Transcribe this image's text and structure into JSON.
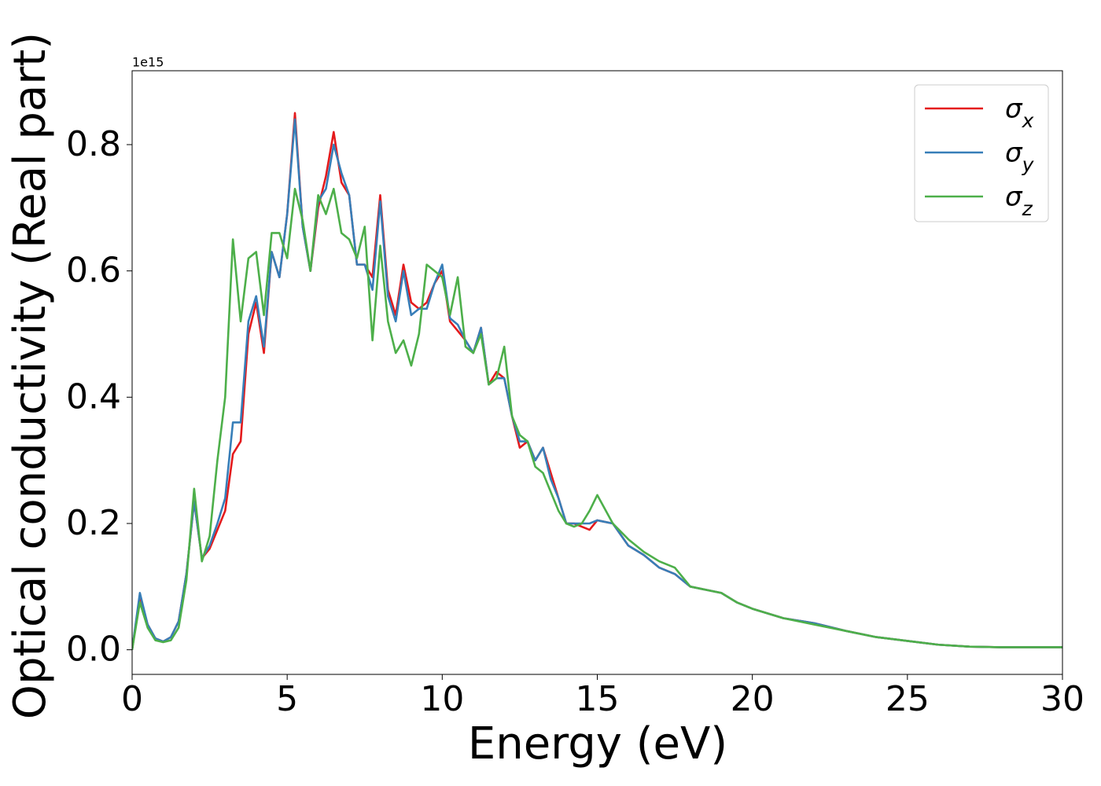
{
  "chart_data": {
    "type": "line",
    "x_label": "Energy (eV)",
    "y_label": "Optical conductivity (Real part)",
    "y_offset_label": "1e15",
    "xlim": [
      0,
      30
    ],
    "xticks": [
      0,
      5,
      10,
      15,
      20,
      25,
      30
    ],
    "ylim": [
      -0.039,
      0.917
    ],
    "yticks": [
      {
        "value": 0,
        "label": "0.0"
      },
      0.2,
      0.4,
      0.6,
      0.8
    ],
    "grid": false,
    "legend": "upper right",
    "x": [
      0,
      0.25,
      0.5,
      0.75,
      1,
      1.25,
      1.5,
      1.75,
      2,
      2.25,
      2.5,
      2.75,
      3,
      3.25,
      3.5,
      3.75,
      4,
      4.25,
      4.5,
      4.75,
      5,
      5.25,
      5.5,
      5.75,
      6,
      6.25,
      6.5,
      6.75,
      7,
      7.25,
      7.5,
      7.75,
      8,
      8.25,
      8.5,
      8.75,
      9,
      9.25,
      9.5,
      9.75,
      10,
      10.25,
      10.5,
      10.75,
      11,
      11.25,
      11.5,
      11.75,
      12,
      12.25,
      12.5,
      12.75,
      13,
      13.25,
      13.5,
      13.75,
      14,
      14.25,
      14.5,
      14.75,
      15,
      15.5,
      16,
      16.5,
      17,
      17.5,
      18,
      18.5,
      19,
      19.5,
      20,
      21,
      22,
      23,
      24,
      25,
      26,
      27,
      28,
      29,
      30
    ],
    "series": [
      {
        "name": "σx",
        "color": "#e41a1c",
        "values": [
          0,
          0.085,
          0.04,
          0.018,
          0.013,
          0.02,
          0.045,
          0.12,
          0.235,
          0.145,
          0.16,
          0.19,
          0.22,
          0.31,
          0.33,
          0.5,
          0.55,
          0.47,
          0.63,
          0.59,
          0.69,
          0.85,
          0.67,
          0.6,
          0.7,
          0.75,
          0.82,
          0.74,
          0.72,
          0.61,
          0.61,
          0.59,
          0.72,
          0.57,
          0.53,
          0.61,
          0.55,
          0.54,
          0.55,
          0.58,
          0.6,
          0.52,
          0.505,
          0.49,
          0.47,
          0.51,
          0.42,
          0.44,
          0.43,
          0.37,
          0.32,
          0.33,
          0.3,
          0.32,
          0.28,
          0.24,
          0.2,
          0.2,
          0.195,
          0.19,
          0.205,
          0.2,
          0.165,
          0.15,
          0.13,
          0.12,
          0.1,
          0.095,
          0.09,
          0.075,
          0.065,
          0.05,
          0.042,
          0.03,
          0.02,
          0.014,
          0.008,
          0.005,
          0.004,
          0.004,
          0.004
        ]
      },
      {
        "name": "σy",
        "color": "#377eb8",
        "values": [
          0,
          0.09,
          0.04,
          0.018,
          0.013,
          0.02,
          0.045,
          0.12,
          0.235,
          0.145,
          0.165,
          0.2,
          0.24,
          0.36,
          0.36,
          0.52,
          0.56,
          0.48,
          0.63,
          0.59,
          0.69,
          0.84,
          0.67,
          0.6,
          0.71,
          0.73,
          0.8,
          0.755,
          0.72,
          0.61,
          0.61,
          0.57,
          0.71,
          0.56,
          0.52,
          0.6,
          0.53,
          0.54,
          0.54,
          0.58,
          0.61,
          0.525,
          0.515,
          0.49,
          0.47,
          0.51,
          0.42,
          0.43,
          0.43,
          0.37,
          0.33,
          0.33,
          0.3,
          0.32,
          0.27,
          0.24,
          0.2,
          0.2,
          0.2,
          0.2,
          0.205,
          0.2,
          0.165,
          0.15,
          0.13,
          0.12,
          0.1,
          0.095,
          0.09,
          0.075,
          0.065,
          0.05,
          0.042,
          0.03,
          0.02,
          0.014,
          0.008,
          0.005,
          0.004,
          0.004,
          0.004
        ]
      },
      {
        "name": "σz",
        "color": "#4daf4a",
        "values": [
          0,
          0.075,
          0.035,
          0.015,
          0.012,
          0.015,
          0.035,
          0.11,
          0.255,
          0.14,
          0.18,
          0.3,
          0.4,
          0.65,
          0.52,
          0.62,
          0.63,
          0.53,
          0.66,
          0.66,
          0.62,
          0.73,
          0.68,
          0.6,
          0.72,
          0.69,
          0.73,
          0.66,
          0.65,
          0.62,
          0.67,
          0.49,
          0.64,
          0.52,
          0.47,
          0.49,
          0.45,
          0.5,
          0.61,
          0.6,
          0.59,
          0.53,
          0.59,
          0.48,
          0.47,
          0.5,
          0.42,
          0.43,
          0.48,
          0.37,
          0.34,
          0.33,
          0.29,
          0.28,
          0.25,
          0.22,
          0.2,
          0.195,
          0.2,
          0.22,
          0.245,
          0.2,
          0.175,
          0.155,
          0.14,
          0.13,
          0.1,
          0.095,
          0.09,
          0.075,
          0.065,
          0.05,
          0.04,
          0.03,
          0.02,
          0.014,
          0.008,
          0.005,
          0.004,
          0.004,
          0.004
        ]
      }
    ]
  }
}
